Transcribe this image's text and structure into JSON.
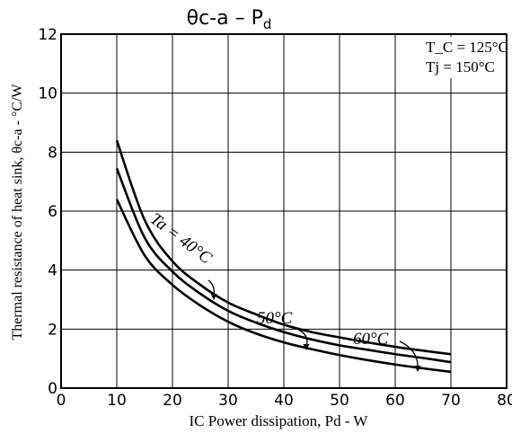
{
  "chart_data": {
    "type": "line",
    "title_main": "θc-a  –  P",
    "title_sub": "d",
    "xlabel": "IC Power dissipation, Pd - W",
    "ylabel": "Thermal resistance of heat sink, θc-a - °C/W",
    "xlim": [
      0,
      80
    ],
    "ylim": [
      0,
      12
    ],
    "x_ticks": [
      "0",
      "10",
      "20",
      "30",
      "40",
      "50",
      "60",
      "70",
      "80"
    ],
    "y_ticks": [
      "0",
      "2",
      "4",
      "6",
      "8",
      "10",
      "12"
    ],
    "grid": true,
    "conditions": [
      "T_C = 125°C",
      "Tj = 150°C"
    ],
    "series": [
      {
        "name": "Ta = 40°C",
        "x": [
          10,
          15,
          20,
          25,
          30,
          35,
          40,
          45,
          50,
          55,
          60,
          65,
          70
        ],
        "y": [
          8.4,
          5.7,
          4.3,
          3.5,
          2.9,
          2.5,
          2.15,
          1.9,
          1.72,
          1.55,
          1.4,
          1.27,
          1.15
        ]
      },
      {
        "name": "50°C",
        "x": [
          10,
          15,
          20,
          25,
          30,
          35,
          40,
          45,
          50,
          55,
          60,
          65,
          70
        ],
        "y": [
          7.45,
          5.1,
          3.95,
          3.2,
          2.62,
          2.22,
          1.9,
          1.65,
          1.45,
          1.3,
          1.15,
          1.02,
          0.88
        ]
      },
      {
        "name": "60°C",
        "x": [
          10,
          15,
          20,
          25,
          30,
          35,
          40,
          45,
          50,
          55,
          60,
          65,
          70
        ],
        "y": [
          6.4,
          4.5,
          3.5,
          2.8,
          2.25,
          1.85,
          1.55,
          1.32,
          1.12,
          0.95,
          0.8,
          0.67,
          0.55
        ]
      }
    ],
    "annotations": [
      "Ta = 40°C",
      "50°C",
      "60°C"
    ]
  }
}
